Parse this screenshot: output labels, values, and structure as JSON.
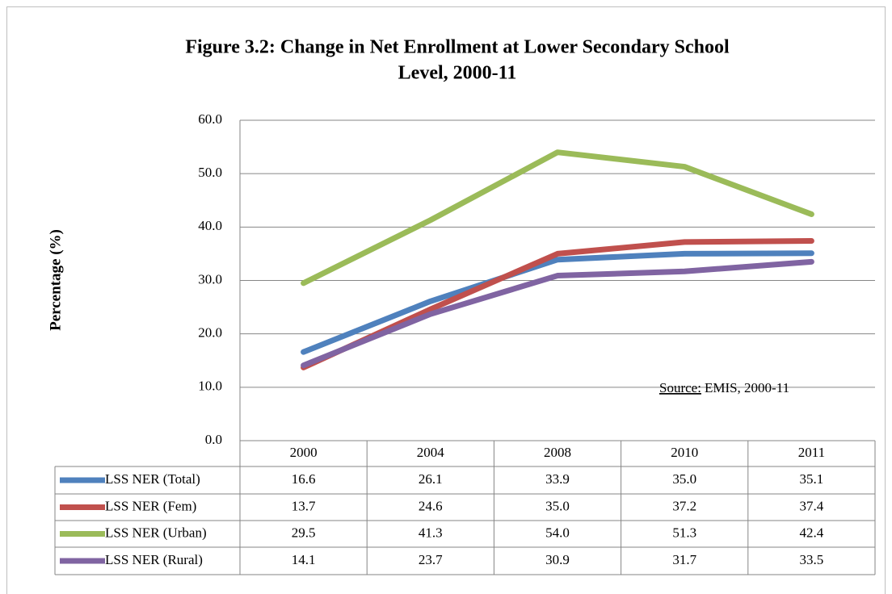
{
  "chart_data": {
    "type": "line",
    "title": "Figure 3.2: Change in Net Enrollment at Lower Secondary School",
    "title_line2": "Level, 2000-11",
    "y_label": "Percentage (%)",
    "categories": [
      "2000",
      "2004",
      "2008",
      "2010",
      "2011"
    ],
    "ylim": [
      0,
      60
    ],
    "yticks": [
      {
        "value": 0,
        "label": "0.0"
      },
      {
        "value": 10,
        "label": "10.0"
      },
      {
        "value": 20,
        "label": "20.0"
      },
      {
        "value": 30,
        "label": "30.0"
      },
      {
        "value": 40,
        "label": "40.0"
      },
      {
        "value": 50,
        "label": "50.0"
      },
      {
        "value": 60,
        "label": "60.0"
      }
    ],
    "grid": true,
    "series": [
      {
        "name": "LSS NER (Total)",
        "color": "#4f81bd",
        "values": [
          16.6,
          26.1,
          33.9,
          35.0,
          35.1
        ],
        "value_labels": [
          "16.6",
          "26.1",
          "33.9",
          "35.0",
          "35.1"
        ]
      },
      {
        "name": "LSS NER (Fem)",
        "color": "#c0504d",
        "values": [
          13.7,
          24.6,
          35.0,
          37.2,
          37.4
        ],
        "value_labels": [
          "13.7",
          "24.6",
          "35.0",
          "37.2",
          "37.4"
        ]
      },
      {
        "name": "LSS NER (Urban)",
        "color": "#9bbb59",
        "values": [
          29.5,
          41.3,
          54.0,
          51.3,
          42.4
        ],
        "value_labels": [
          "29.5",
          "41.3",
          "54.0",
          "51.3",
          "42.4"
        ]
      },
      {
        "name": "LSS NER (Rural)",
        "color": "#8064a2",
        "values": [
          14.1,
          23.7,
          30.9,
          31.7,
          33.5
        ],
        "value_labels": [
          "14.1",
          "23.7",
          "30.9",
          "31.7",
          "33.5"
        ]
      }
    ],
    "source_label": "Source:",
    "source_text": "EMIS, 2000-11"
  }
}
